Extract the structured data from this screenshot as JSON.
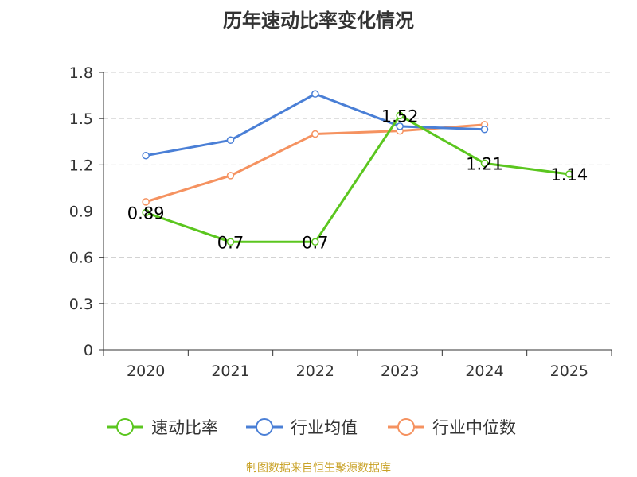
{
  "chart_data": {
    "type": "line",
    "title": "历年速动比率变化情况",
    "categories": [
      "2020",
      "2021",
      "2022",
      "2023",
      "2024",
      "2025"
    ],
    "ylim": [
      0,
      1.8
    ],
    "yticks": [
      0,
      0.3,
      0.6,
      0.9,
      1.2,
      1.5,
      1.8
    ],
    "ytick_labels": [
      "0",
      "0.3",
      "0.6",
      "0.9",
      "1.2",
      "1.5",
      "1.8"
    ],
    "grid": true,
    "legend_position": "bottom",
    "series": [
      {
        "name": "速动比率",
        "color": "#5bc61f",
        "values": [
          0.89,
          0.7,
          0.7,
          1.52,
          1.21,
          1.14
        ],
        "labels": [
          "0.89",
          "0.7",
          "0.7",
          "1.52",
          "1.21",
          "1.14"
        ]
      },
      {
        "name": "行业均值",
        "color": "#4a7fd6",
        "values": [
          1.26,
          1.36,
          1.66,
          1.45,
          1.43,
          null
        ]
      },
      {
        "name": "行业中位数",
        "color": "#f59260",
        "values": [
          0.96,
          1.13,
          1.4,
          1.42,
          1.46,
          null
        ]
      }
    ]
  },
  "source_note": "制图数据来自恒生聚源数据库"
}
